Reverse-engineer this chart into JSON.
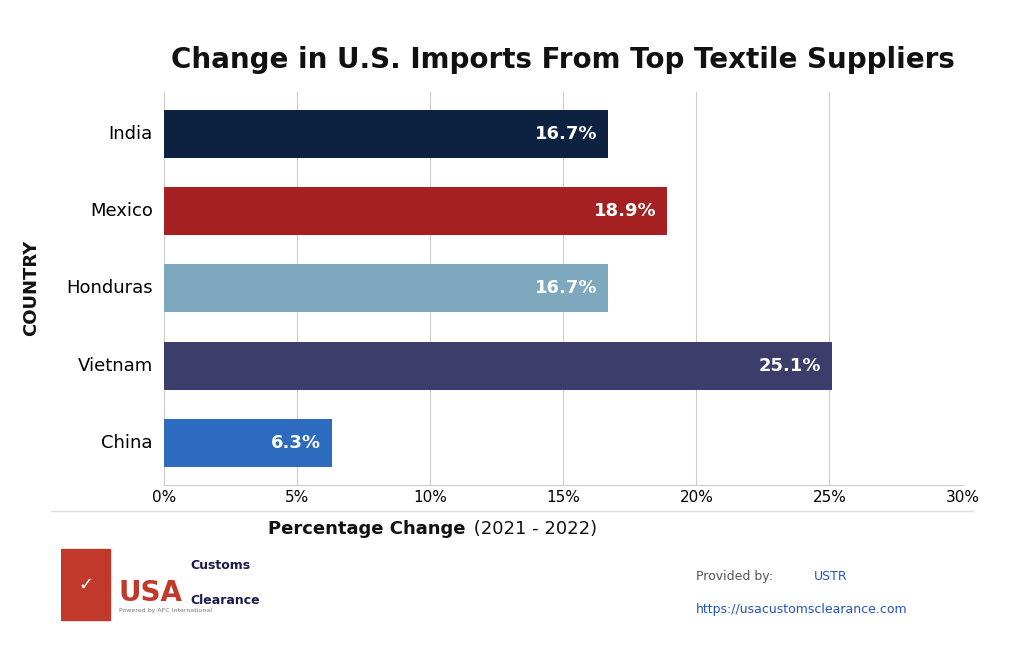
{
  "title": "Change in U.S. Imports From Top Textile Suppliers",
  "categories": [
    "India",
    "Mexico",
    "Honduras",
    "Vietnam",
    "China"
  ],
  "values": [
    16.7,
    18.9,
    16.7,
    25.1,
    6.3
  ],
  "bar_colors": [
    "#0d2240",
    "#a52020",
    "#7ea8be",
    "#3d3d6b",
    "#2d6bbf"
  ],
  "xlabel_bold": "Percentage Change",
  "xlabel_normal": " (2021 - 2022)",
  "ylabel": "COUNTRY",
  "xlim": [
    0,
    30
  ],
  "xtick_values": [
    0,
    5,
    10,
    15,
    20,
    25,
    30
  ],
  "xtick_labels": [
    "0%",
    "5%",
    "10%",
    "15%",
    "20%",
    "25%",
    "30%"
  ],
  "label_color": "#ffffff",
  "label_fontsize": 13,
  "title_fontsize": 20,
  "background_color": "#ffffff",
  "bar_height": 0.62,
  "grid_color": "#cccccc",
  "footer_provided_by": "Provided by: ",
  "footer_ustr": "USTR",
  "footer_url": "https://usacustomsclearance.com"
}
